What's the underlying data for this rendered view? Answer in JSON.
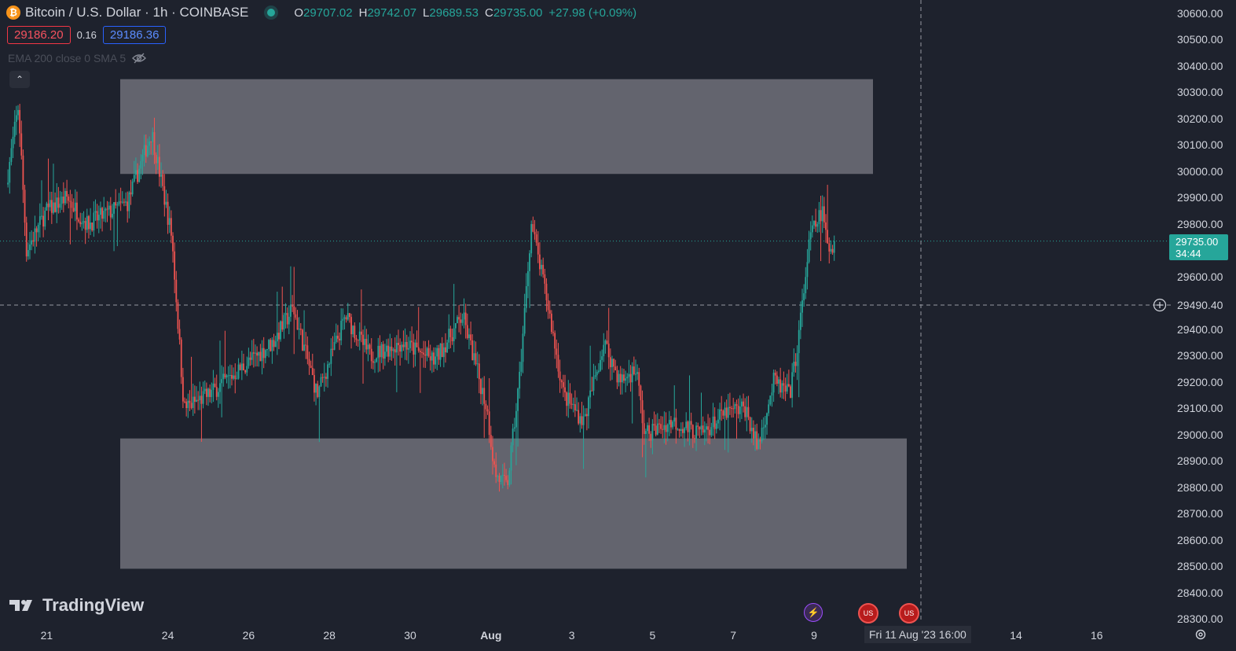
{
  "header": {
    "symbol_icon": "bitcoin-icon",
    "title": "Bitcoin / U.S. Dollar · 1h · COINBASE",
    "ohlc": [
      {
        "key": "O",
        "value": "29707.02"
      },
      {
        "key": "H",
        "value": "29742.07"
      },
      {
        "key": "L",
        "value": "29689.53"
      },
      {
        "key": "C",
        "value": "29735.00"
      }
    ],
    "change": "+27.98 (+0.09%)"
  },
  "trade": {
    "sell": "29186.20",
    "spread": "0.16",
    "buy": "29186.36"
  },
  "indicator": {
    "label": "EMA 200 close 0 SMA 5"
  },
  "branding": {
    "logo_text": "TradingView"
  },
  "colors": {
    "up": "#26a69a",
    "down": "#ef5350",
    "zone": "#6a6c75",
    "background": "#1e222d"
  },
  "price_axis": {
    "labels": [
      "30600.00",
      "30500.00",
      "30400.00",
      "30300.00",
      "30200.00",
      "30100.00",
      "30000.00",
      "29900.00",
      "29800.00",
      "29600.00",
      "29400.00",
      "29300.00",
      "29200.00",
      "29100.00",
      "29000.00",
      "28900.00",
      "28800.00",
      "28700.00",
      "28600.00",
      "28500.00",
      "28400.00",
      "28300.00"
    ],
    "last_price": "29735.00",
    "countdown": "34:44",
    "crosshair_price": "29490.40"
  },
  "time_axis": {
    "labels": [
      "21",
      "24",
      "26",
      "28",
      "30",
      "Aug",
      "3",
      "5",
      "7",
      "9",
      "14",
      "16"
    ],
    "crosshair_label": "Fri 11 Aug '23   16:00"
  },
  "chart_data": {
    "type": "candlestick",
    "symbol": "BTC/USD",
    "interval": "1h",
    "ylim": [
      28250,
      30650
    ],
    "x_ticks": [
      "21",
      "24",
      "26",
      "28",
      "30",
      "Aug",
      "3",
      "5",
      "7",
      "9",
      "14",
      "16"
    ],
    "zones": [
      {
        "name": "resistance",
        "low": 29990,
        "high": 30350,
        "from": "Jul 23",
        "to": "Aug 10"
      },
      {
        "name": "support",
        "low": 28490,
        "high": 28985,
        "from": "Jul 23",
        "to": "Aug 11"
      }
    ],
    "path": [
      {
        "t": 0,
        "p": 29950
      },
      {
        "t": 0.3,
        "p": 30250
      },
      {
        "t": 0.5,
        "p": 29700
      },
      {
        "t": 1.0,
        "p": 29850
      },
      {
        "t": 1.5,
        "p": 29900
      },
      {
        "t": 2.0,
        "p": 29800
      },
      {
        "t": 3.0,
        "p": 29880
      },
      {
        "t": 3.6,
        "p": 30150
      },
      {
        "t": 4.1,
        "p": 29750
      },
      {
        "t": 4.4,
        "p": 29100
      },
      {
        "t": 5.0,
        "p": 29150
      },
      {
        "t": 5.8,
        "p": 29250
      },
      {
        "t": 6.6,
        "p": 29350
      },
      {
        "t": 7.1,
        "p": 29480
      },
      {
        "t": 7.7,
        "p": 29150
      },
      {
        "t": 8.4,
        "p": 29450
      },
      {
        "t": 9.0,
        "p": 29300
      },
      {
        "t": 9.8,
        "p": 29350
      },
      {
        "t": 10.6,
        "p": 29280
      },
      {
        "t": 11.3,
        "p": 29450
      },
      {
        "t": 11.9,
        "p": 29100
      },
      {
        "t": 12.1,
        "p": 28850
      },
      {
        "t": 12.4,
        "p": 28800
      },
      {
        "t": 12.7,
        "p": 29200
      },
      {
        "t": 13.0,
        "p": 29800
      },
      {
        "t": 13.4,
        "p": 29500
      },
      {
        "t": 13.8,
        "p": 29150
      },
      {
        "t": 14.3,
        "p": 29050
      },
      {
        "t": 14.8,
        "p": 29350
      },
      {
        "t": 15.2,
        "p": 29200
      },
      {
        "t": 15.6,
        "p": 29250
      },
      {
        "t": 15.8,
        "p": 29000
      },
      {
        "t": 16.5,
        "p": 29050
      },
      {
        "t": 17.2,
        "p": 29000
      },
      {
        "t": 17.8,
        "p": 29080
      },
      {
        "t": 18.3,
        "p": 29100
      },
      {
        "t": 18.6,
        "p": 28950
      },
      {
        "t": 19.0,
        "p": 29200
      },
      {
        "t": 19.4,
        "p": 29150
      },
      {
        "t": 19.6,
        "p": 29350
      },
      {
        "t": 19.9,
        "p": 29750
      },
      {
        "t": 20.2,
        "p": 29850
      },
      {
        "t": 20.35,
        "p": 29700
      },
      {
        "t": 20.5,
        "p": 29735
      }
    ],
    "last_close": 29735.0
  }
}
